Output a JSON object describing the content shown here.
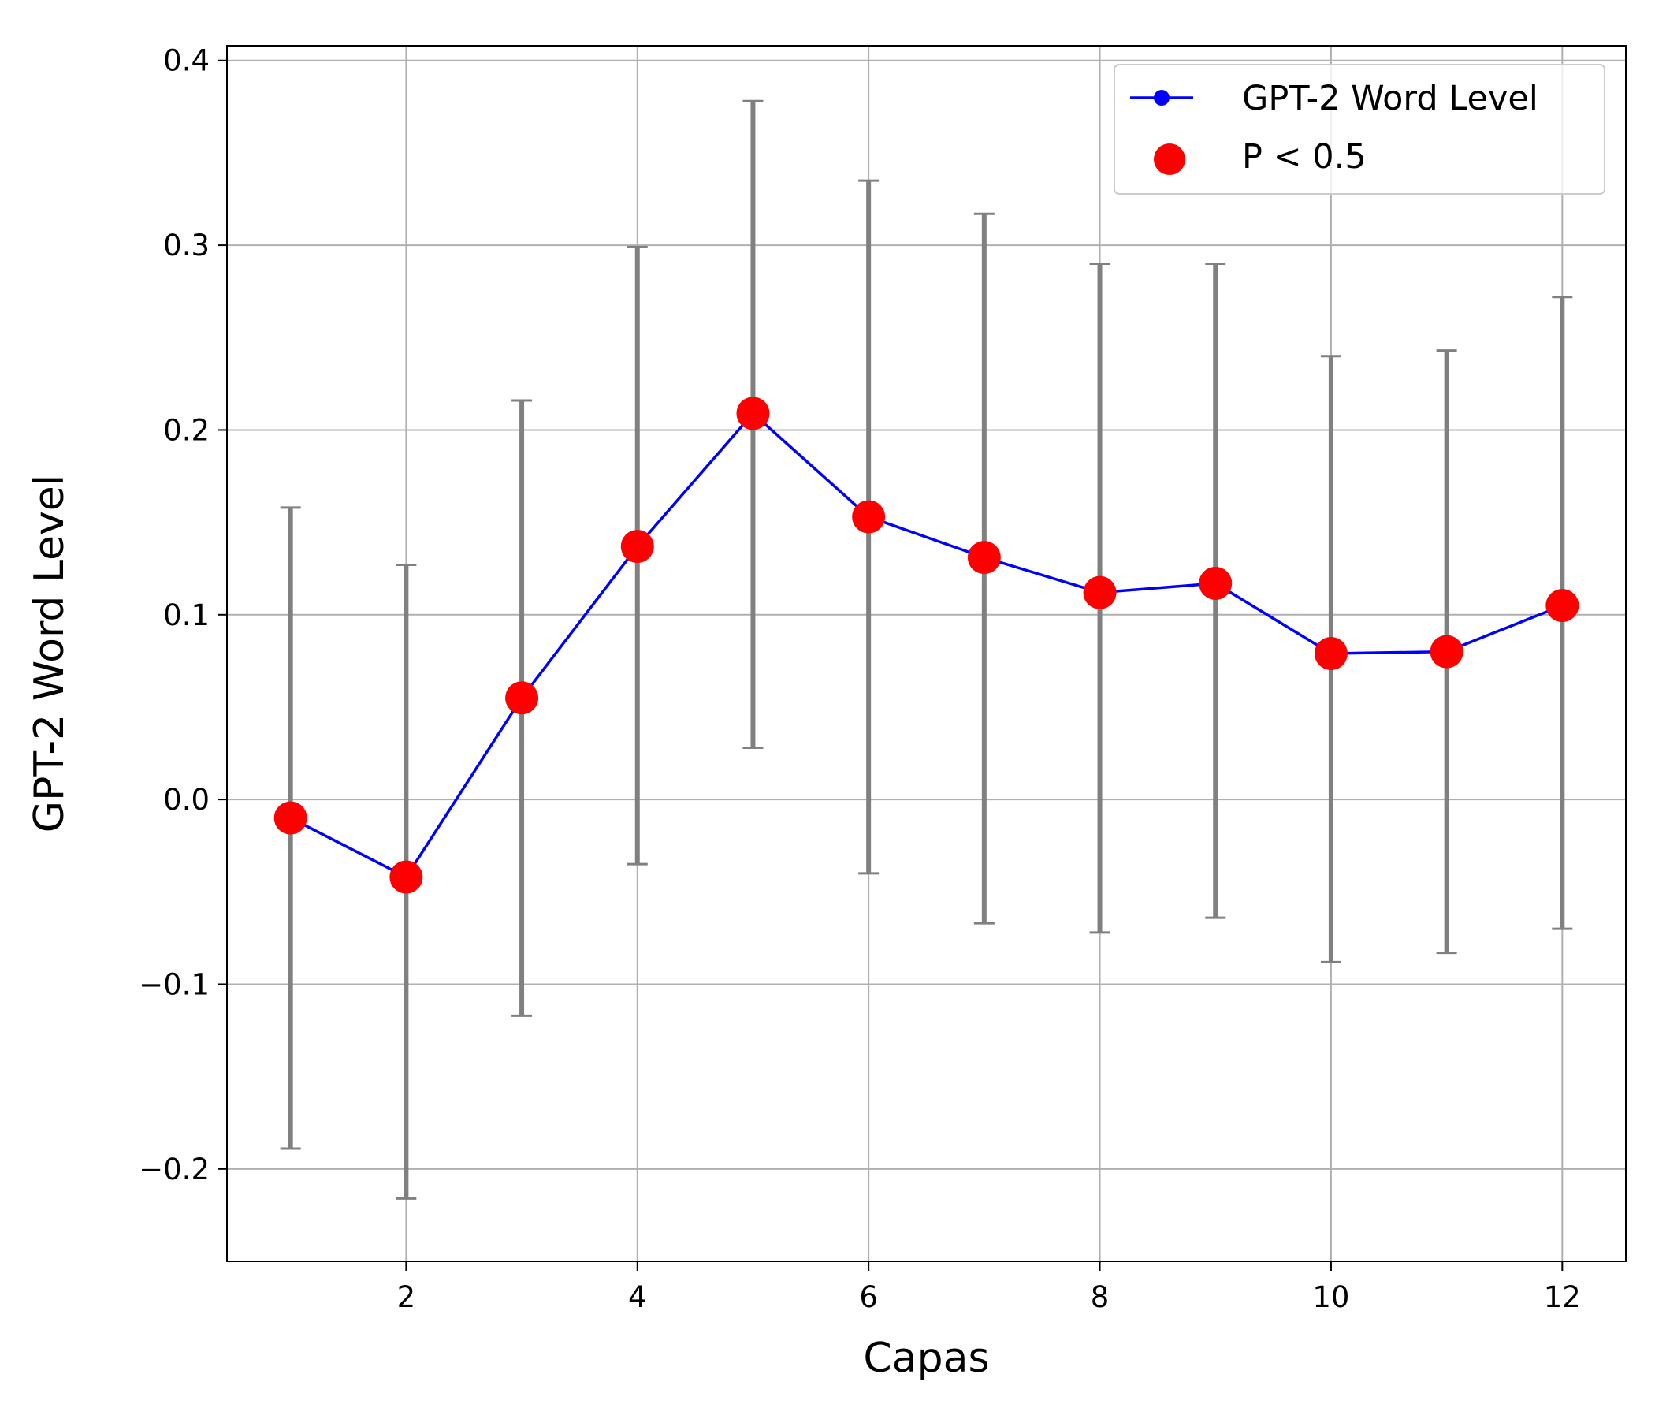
{
  "chart_data": {
    "type": "line",
    "xlabel": "Capas",
    "ylabel": "GPT-2 Word Level",
    "xlim": [
      0.45,
      12.55
    ],
    "ylim": [
      -0.25,
      0.408
    ],
    "xticks": [
      2,
      4,
      6,
      8,
      10,
      12
    ],
    "yticks": [
      -0.2,
      -0.1,
      0.0,
      0.1,
      0.2,
      0.3,
      0.4
    ],
    "ytick_labels": [
      "−0.2",
      "−0.1",
      "0.0",
      "0.1",
      "0.2",
      "0.3",
      "0.4"
    ],
    "grid": true,
    "legend_position": "top-right",
    "series": [
      {
        "name": "GPT-2 Word Level",
        "kind": "line",
        "color": "#0000ff",
        "x": [
          1,
          2,
          3,
          4,
          5,
          6,
          7,
          8,
          9,
          10,
          11,
          12
        ],
        "y": [
          -0.01,
          -0.042,
          0.055,
          0.137,
          0.209,
          0.153,
          0.131,
          0.112,
          0.117,
          0.079,
          0.08,
          0.105
        ],
        "error_low": [
          -0.189,
          -0.216,
          -0.117,
          -0.035,
          0.028,
          -0.04,
          -0.067,
          -0.072,
          -0.064,
          -0.088,
          -0.083,
          -0.07
        ],
        "error_high": [
          0.158,
          0.127,
          0.216,
          0.299,
          0.378,
          0.335,
          0.317,
          0.29,
          0.29,
          0.24,
          0.243,
          0.272
        ],
        "error_color": "#808080"
      },
      {
        "name": "P < 0.5",
        "kind": "scatter",
        "color": "#ff0000",
        "x": [
          1,
          2,
          3,
          4,
          5,
          6,
          7,
          8,
          9,
          10,
          11,
          12
        ],
        "y": [
          -0.01,
          -0.042,
          0.055,
          0.137,
          0.209,
          0.153,
          0.131,
          0.112,
          0.117,
          0.079,
          0.08,
          0.105
        ]
      }
    ]
  }
}
